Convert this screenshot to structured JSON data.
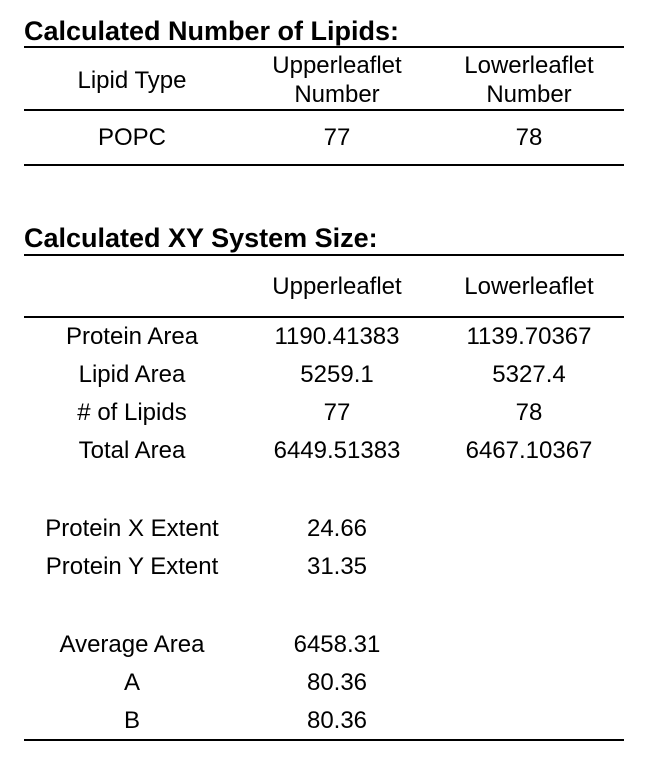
{
  "section1": {
    "title": "Calculated Number of Lipids:",
    "headers": {
      "col1": "Lipid Type",
      "col2_line1": "Upperleaflet",
      "col2_line2": "Number",
      "col3_line1": "Lowerleaflet",
      "col3_line2": "Number"
    },
    "row": {
      "type": "POPC",
      "upper": "77",
      "lower": "78"
    }
  },
  "section2": {
    "title": "Calculated XY System Size:",
    "headers": {
      "col1": "",
      "col2": "Upperleaflet",
      "col3": "Lowerleaflet"
    },
    "rows": [
      {
        "label": "Protein Area",
        "upper": "1190.41383",
        "lower": "1139.70367"
      },
      {
        "label": "Lipid Area",
        "upper": "5259.1",
        "lower": "5327.4"
      },
      {
        "label": "# of Lipids",
        "upper": "77",
        "lower": "78"
      },
      {
        "label": "Total Area",
        "upper": "6449.51383",
        "lower": "6467.10367"
      }
    ],
    "extents": [
      {
        "label": "Protein X Extent",
        "value": "24.66"
      },
      {
        "label": "Protein Y Extent",
        "value": "31.35"
      }
    ],
    "averages": [
      {
        "label": "Average Area",
        "value": "6458.31"
      },
      {
        "label": "A",
        "value": "80.36"
      },
      {
        "label": "B",
        "value": "80.36"
      }
    ]
  }
}
